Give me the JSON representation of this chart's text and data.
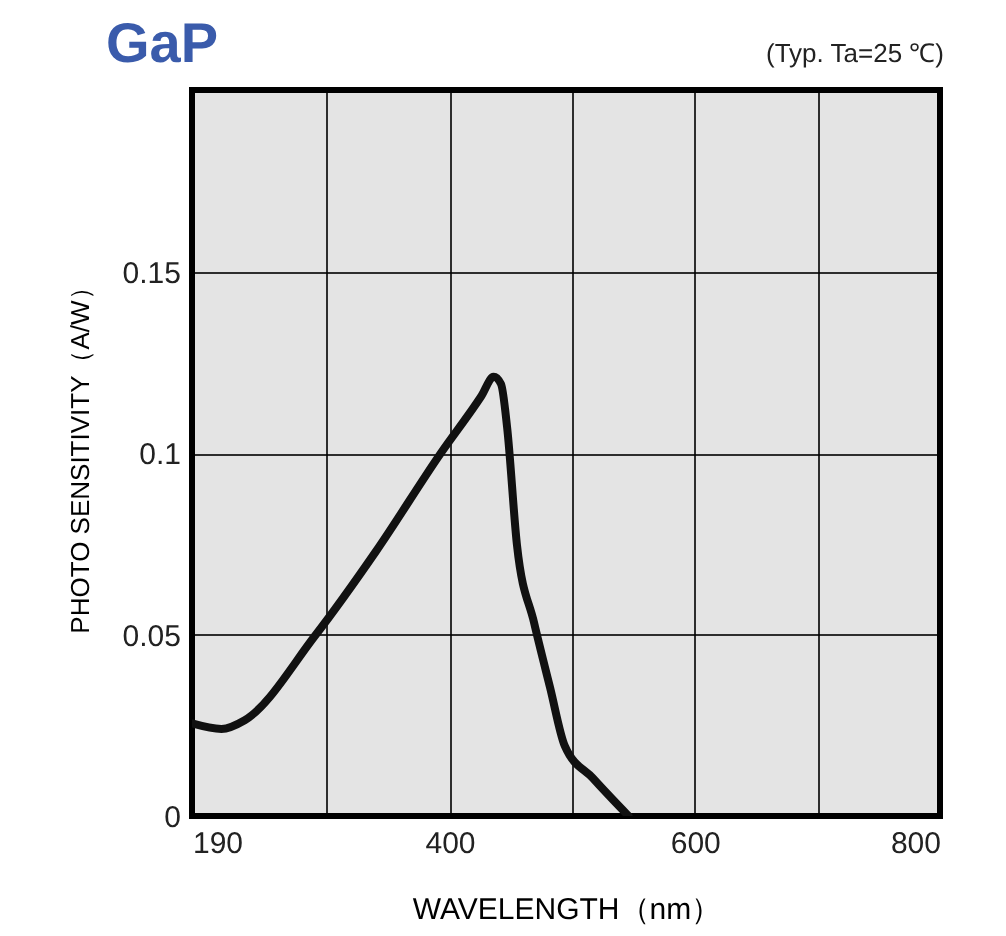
{
  "chart_data": {
    "type": "line",
    "title": "GaP",
    "subtitle": "(Typ. Ta=25 ℃)",
    "xlabel": "WAVELENGTH（nm）",
    "ylabel": "PHOTO SENSITIVITY（A/W）",
    "xlim": [
      190,
      800
    ],
    "ylim": [
      0,
      0.2
    ],
    "xticks": [
      190,
      {
        "value": 300,
        "label": null
      },
      400,
      {
        "value": 500,
        "label": null
      },
      600,
      {
        "value": 700,
        "label": null
      },
      800
    ],
    "yticks": [
      0,
      0.05,
      0.1,
      0.15,
      {
        "value": 0.2,
        "label": null
      }
    ],
    "grid": true,
    "line_style": "solid",
    "marker": "none",
    "series": [
      {
        "color": "#111111",
        "x": [
          190,
          214,
          233,
          290,
          340,
          393,
          426,
          436,
          442,
          447,
          455,
          469,
          482,
          494,
          517,
          546
        ],
        "values": [
          0.0255,
          0.024,
          0.0264,
          0.0495,
          0.0729,
          0.1,
          0.1157,
          0.121,
          0.119,
          0.107,
          0.0747,
          0.0532,
          0.0354,
          0.0193,
          0.0104,
          0
        ]
      }
    ]
  }
}
